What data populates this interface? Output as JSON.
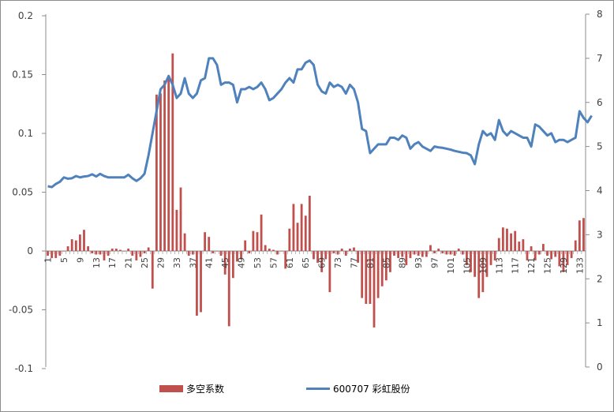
{
  "chart_data": {
    "type": "bar+line",
    "title": "",
    "x": {
      "start": 1,
      "end": 134,
      "tick_step": 4,
      "tick_labels": [
        "1",
        "5",
        "9",
        "13",
        "17",
        "21",
        "25",
        "29",
        "33",
        "37",
        "41",
        "45",
        "49",
        "53",
        "57",
        "61",
        "65",
        "69",
        "73",
        "77",
        "81",
        "85",
        "89",
        "93",
        "97",
        "101",
        "105",
        "109",
        "113",
        "117",
        "121",
        "125",
        "129",
        "133"
      ]
    },
    "y_left": {
      "min": -0.1,
      "max": 0.2,
      "ticks": [
        "0.2",
        "0.15",
        "0.1",
        "0.05",
        "0",
        "-0.05",
        "-0.1"
      ]
    },
    "y_right": {
      "min": 0,
      "max": 8,
      "ticks": [
        "8",
        "7",
        "6",
        "5",
        "4",
        "3",
        "2",
        "1",
        "0"
      ]
    },
    "legend": {
      "position": "bottom"
    },
    "series": [
      {
        "name": "多空系数",
        "type": "bar",
        "axis": "left",
        "color": "#c0504d",
        "values": [
          -0.004,
          -0.006,
          -0.006,
          -0.004,
          0.0,
          0.004,
          0.01,
          0.009,
          0.014,
          0.018,
          0.004,
          -0.002,
          -0.003,
          -0.003,
          -0.008,
          -0.004,
          0.002,
          0.002,
          0.001,
          0.0,
          0.002,
          -0.004,
          -0.008,
          -0.005,
          -0.002,
          0.003,
          -0.032,
          0.133,
          0.134,
          0.145,
          0.147,
          0.168,
          0.035,
          0.054,
          0.015,
          -0.004,
          -0.003,
          -0.055,
          -0.052,
          0.016,
          0.012,
          -0.002,
          0.0,
          -0.004,
          -0.02,
          -0.064,
          -0.023,
          -0.009,
          -0.007,
          0.009,
          -0.002,
          0.017,
          0.016,
          0.031,
          0.005,
          0.002,
          0.001,
          -0.003,
          0.0,
          -0.015,
          0.019,
          0.04,
          0.024,
          0.04,
          0.03,
          0.047,
          -0.007,
          -0.01,
          -0.018,
          -0.007,
          -0.035,
          -0.002,
          -0.003,
          0.002,
          -0.004,
          0.002,
          0.003,
          -0.01,
          -0.04,
          -0.045,
          -0.045,
          -0.065,
          -0.04,
          -0.03,
          -0.025,
          -0.018,
          -0.004,
          -0.006,
          -0.005,
          -0.012,
          -0.006,
          -0.003,
          -0.004,
          -0.005,
          -0.005,
          0.005,
          -0.002,
          0.002,
          -0.002,
          -0.003,
          -0.003,
          -0.004,
          0.002,
          -0.003,
          -0.012,
          -0.018,
          -0.022,
          -0.04,
          -0.035,
          -0.022,
          -0.012,
          -0.008,
          0.011,
          0.02,
          0.019,
          0.015,
          0.017,
          0.008,
          0.01,
          -0.008,
          0.004,
          -0.008,
          -0.003,
          0.006,
          -0.004,
          -0.007,
          -0.005,
          -0.013,
          -0.018,
          -0.012,
          -0.006,
          0.009,
          0.026,
          0.028
        ]
      },
      {
        "name": "600707 彩虹股份",
        "type": "line",
        "axis": "right",
        "color": "#4f81bd",
        "values": [
          4.1,
          4.08,
          4.15,
          4.2,
          4.3,
          4.27,
          4.28,
          4.33,
          4.3,
          4.32,
          4.33,
          4.37,
          4.32,
          4.38,
          4.33,
          4.3,
          4.3,
          4.3,
          4.3,
          4.3,
          4.36,
          4.28,
          4.22,
          4.28,
          4.38,
          4.8,
          5.3,
          5.8,
          6.3,
          6.4,
          6.6,
          6.4,
          6.1,
          6.2,
          6.55,
          6.2,
          6.1,
          6.2,
          6.5,
          6.55,
          7.0,
          7.0,
          6.85,
          6.4,
          6.45,
          6.45,
          6.4,
          6.0,
          6.3,
          6.3,
          6.35,
          6.3,
          6.35,
          6.45,
          6.3,
          6.05,
          6.1,
          6.2,
          6.3,
          6.45,
          6.55,
          6.45,
          6.75,
          6.75,
          6.9,
          6.95,
          6.85,
          6.4,
          6.25,
          6.2,
          6.45,
          6.35,
          6.4,
          6.35,
          6.2,
          6.4,
          6.3,
          6.0,
          5.4,
          5.35,
          4.85,
          4.95,
          5.05,
          5.05,
          5.05,
          5.2,
          5.2,
          5.15,
          5.25,
          5.2,
          4.95,
          5.05,
          5.1,
          5.0,
          4.95,
          4.9,
          5.0,
          4.98,
          4.97,
          4.95,
          4.93,
          4.9,
          4.88,
          4.86,
          4.85,
          4.8,
          4.6,
          5.05,
          5.35,
          5.25,
          5.3,
          5.15,
          5.6,
          5.35,
          5.25,
          5.35,
          5.3,
          5.25,
          5.2,
          5.2,
          5.0,
          5.5,
          5.45,
          5.35,
          5.25,
          5.3,
          5.1,
          5.15,
          5.15,
          5.1,
          5.15,
          5.2,
          5.8,
          5.65,
          5.55,
          5.7
        ]
      }
    ]
  }
}
